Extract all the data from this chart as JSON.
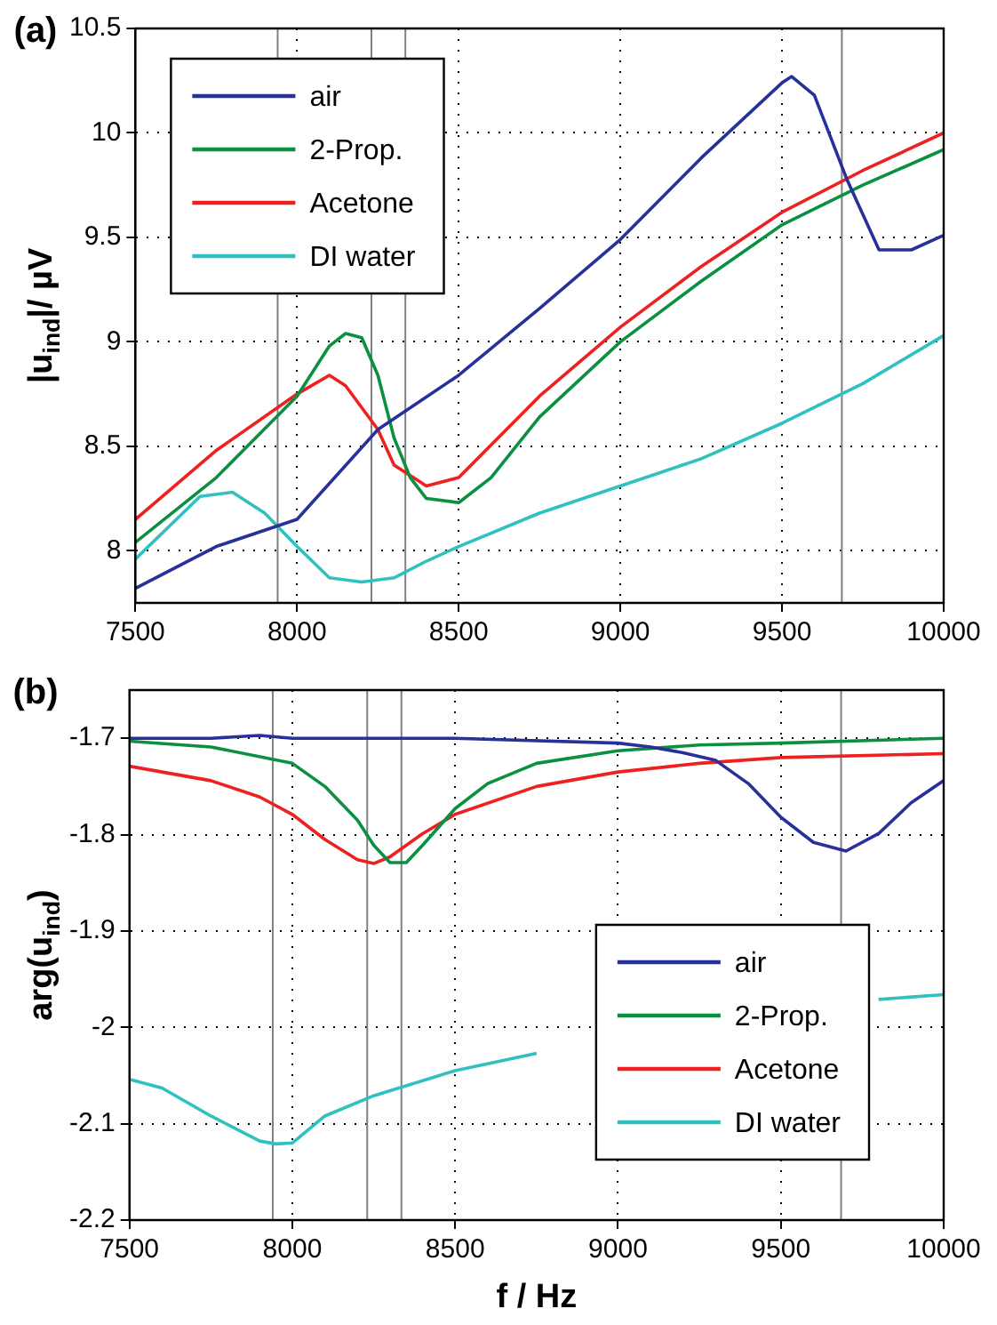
{
  "chart_data": [
    {
      "type": "line",
      "title": "(a)",
      "ylabel": "|u$_{ind}$|/ µV",
      "xlim": [
        7500,
        10000
      ],
      "xticks": [
        7500,
        8000,
        8500,
        9000,
        9500,
        10000
      ],
      "ylim": [
        7.75,
        10.5
      ],
      "yticks": [
        8,
        8.5,
        9,
        9.5,
        10,
        10.5
      ],
      "grid": true,
      "legend": "top left",
      "line_style": "solid",
      "marker": "none",
      "ref_lines": [
        {
          "axis": "x",
          "value": 7940,
          "color": "#808080"
        },
        {
          "axis": "x",
          "value": 8230,
          "color": "#808080"
        },
        {
          "axis": "x",
          "value": 8335,
          "color": "#808080"
        },
        {
          "axis": "x",
          "value": 9685,
          "color": "#808080"
        }
      ],
      "series": [
        {
          "name": "air",
          "color": "#28309a",
          "x": [
            7500,
            7750,
            8000,
            8250,
            8500,
            8750,
            9000,
            9250,
            9500,
            9530,
            9600,
            9700,
            9800,
            9900,
            10000
          ],
          "values": [
            7.82,
            8.02,
            8.15,
            8.58,
            8.84,
            9.16,
            9.49,
            9.88,
            10.24,
            10.27,
            10.18,
            9.78,
            9.44,
            9.44,
            9.51
          ]
        },
        {
          "name": "2-Prop.",
          "color": "#0a9040",
          "x": [
            7500,
            7750,
            8000,
            8100,
            8150,
            8200,
            8250,
            8300,
            8350,
            8400,
            8500,
            8600,
            8750,
            9000,
            9250,
            9500,
            9750,
            10000
          ],
          "values": [
            8.04,
            8.35,
            8.74,
            8.98,
            9.04,
            9.02,
            8.84,
            8.54,
            8.35,
            8.25,
            8.23,
            8.35,
            8.64,
            9.0,
            9.29,
            9.56,
            9.75,
            9.92
          ]
        },
        {
          "name": "Acetone",
          "color": "#ee2020",
          "x": [
            7500,
            7750,
            8000,
            8100,
            8150,
            8250,
            8300,
            8400,
            8500,
            8750,
            9000,
            9250,
            9500,
            9750,
            10000
          ],
          "values": [
            8.15,
            8.48,
            8.75,
            8.84,
            8.79,
            8.58,
            8.41,
            8.31,
            8.35,
            8.74,
            9.07,
            9.36,
            9.62,
            9.82,
            10.0
          ]
        },
        {
          "name": "DI water",
          "color": "#30c0c0",
          "x": [
            7500,
            7700,
            7800,
            7900,
            8000,
            8100,
            8200,
            8300,
            8400,
            8500,
            8750,
            9000,
            9250,
            9500,
            9750,
            10000
          ],
          "values": [
            7.96,
            8.26,
            8.28,
            8.18,
            8.02,
            7.87,
            7.85,
            7.87,
            7.95,
            8.02,
            8.18,
            8.31,
            8.44,
            8.61,
            8.8,
            9.03
          ]
        }
      ]
    },
    {
      "type": "line",
      "title": "(b)",
      "xlabel": "f / Hz",
      "ylabel": "arg(u$_{ind}$)",
      "xlim": [
        7500,
        10000
      ],
      "xticks": [
        7500,
        8000,
        8500,
        9000,
        9500,
        10000
      ],
      "ylim": [
        -2.2,
        -1.65
      ],
      "yticks": [
        -2.2,
        -2.1,
        -2,
        -1.9,
        -1.8,
        -1.7
      ],
      "grid": true,
      "legend": "bottom right",
      "line_style": "solid",
      "marker": "none",
      "ref_lines": [
        {
          "axis": "x",
          "value": 7940,
          "color": "#808080"
        },
        {
          "axis": "x",
          "value": 8230,
          "color": "#808080"
        },
        {
          "axis": "x",
          "value": 8335,
          "color": "#808080"
        },
        {
          "axis": "x",
          "value": 9685,
          "color": "#808080"
        }
      ],
      "series": [
        {
          "name": "air",
          "color": "#28309a",
          "x": [
            7500,
            7750,
            7900,
            8000,
            8500,
            9000,
            9100,
            9200,
            9300,
            9400,
            9500,
            9600,
            9700,
            9800,
            9900,
            10000
          ],
          "values": [
            -1.7,
            -1.7,
            -1.697,
            -1.7,
            -1.7,
            -1.705,
            -1.709,
            -1.715,
            -1.723,
            -1.747,
            -1.782,
            -1.808,
            -1.817,
            -1.799,
            -1.767,
            -1.744
          ]
        },
        {
          "name": "2-Prop.",
          "color": "#0a9040",
          "x": [
            7500,
            7750,
            8000,
            8100,
            8200,
            8250,
            8300,
            8350,
            8400,
            8500,
            8600,
            8750,
            9000,
            9250,
            9500,
            10000
          ],
          "values": [
            -1.703,
            -1.709,
            -1.726,
            -1.75,
            -1.785,
            -1.811,
            -1.829,
            -1.829,
            -1.811,
            -1.773,
            -1.747,
            -1.726,
            -1.713,
            -1.707,
            -1.705,
            -1.7
          ]
        },
        {
          "name": "Acetone",
          "color": "#ee2020",
          "x": [
            7500,
            7750,
            7900,
            8000,
            8100,
            8200,
            8250,
            8300,
            8400,
            8500,
            8750,
            9000,
            9250,
            9500,
            10000
          ],
          "values": [
            -1.729,
            -1.744,
            -1.761,
            -1.779,
            -1.805,
            -1.826,
            -1.83,
            -1.823,
            -1.799,
            -1.779,
            -1.75,
            -1.735,
            -1.726,
            -1.72,
            -1.716
          ]
        },
        {
          "name": "DI water",
          "color": "#30c0c0",
          "x": [
            7500,
            7600,
            7750,
            7900,
            7950,
            8000,
            8100,
            8250,
            8500,
            8750,
            9000,
            9250,
            9500,
            9800,
            10000
          ],
          "values": [
            -2.054,
            -2.063,
            -2.092,
            -2.118,
            -2.121,
            -2.12,
            -2.092,
            -2.071,
            -2.045,
            -2.027,
            null,
            null,
            null,
            -1.971,
            -1.966
          ]
        }
      ]
    }
  ]
}
